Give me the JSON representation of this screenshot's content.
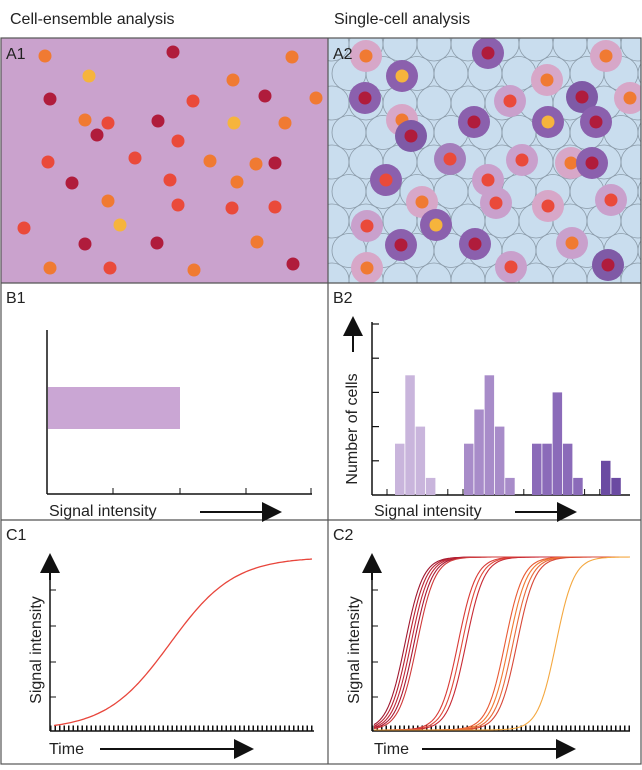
{
  "headers": [
    "Cell-ensemble analysis",
    "Single-cell analysis"
  ],
  "panels": {
    "A1": {
      "label": "A1"
    },
    "A2": {
      "label": "A2"
    },
    "B1": {
      "label": "B1",
      "x_label": "Signal intensity"
    },
    "B2": {
      "label": "B2",
      "x_label": "Signal intensity",
      "y_label": "Number of cells",
      "ylim": [
        0,
        5
      ],
      "yticks": [
        1,
        2,
        3,
        4,
        5
      ],
      "groups": [
        {
          "color": "#c9b5dc",
          "values": [
            1.5,
            3.5,
            2,
            0.5
          ]
        },
        {
          "color": "#a88cc9",
          "values": [
            1.5,
            2.5,
            3.5,
            2,
            0.5
          ]
        },
        {
          "color": "#8b6bb9",
          "values": [
            1.5,
            1.5,
            3,
            1.5,
            0.5
          ]
        },
        {
          "color": "#6b4ba2",
          "values": [
            1,
            0.5
          ]
        }
      ]
    },
    "C1": {
      "label": "C1",
      "x_label": "Time",
      "y_label": "Signal intensity"
    },
    "C2": {
      "label": "C2",
      "x_label": "Time",
      "y_label": "Signal intensity"
    }
  }
}
